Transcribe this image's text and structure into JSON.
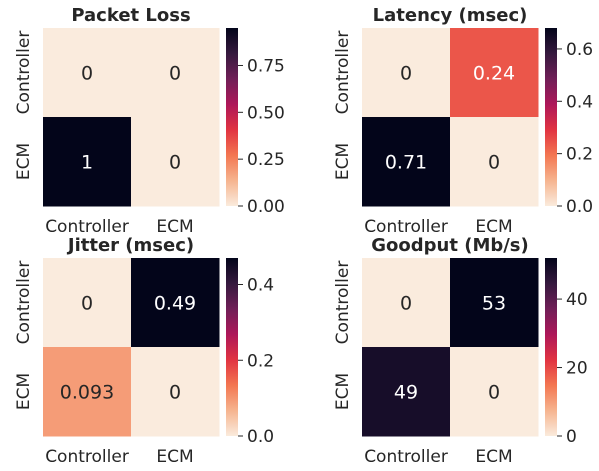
{
  "chart_data": [
    {
      "type": "heatmap",
      "title": "Packet Loss",
      "rows": [
        "Controller",
        "ECM"
      ],
      "cols": [
        "Controller",
        "ECM"
      ],
      "values": [
        [
          0,
          0
        ],
        [
          1,
          0
        ]
      ],
      "labels": [
        [
          "0",
          "0"
        ],
        [
          "1",
          "0"
        ]
      ],
      "colorbar": {
        "vmin": 0,
        "vmax": 0.95,
        "ticks": [
          0.0,
          0.25,
          0.5,
          0.75
        ],
        "tick_labels": [
          "0.00",
          "0.25",
          "0.50",
          "0.75"
        ]
      }
    },
    {
      "type": "heatmap",
      "title": "Latency (msec)",
      "rows": [
        "Controller",
        "ECM"
      ],
      "cols": [
        "Controller",
        "ECM"
      ],
      "values": [
        [
          0,
          0.24
        ],
        [
          0.71,
          0
        ]
      ],
      "labels": [
        [
          "0",
          "0.24"
        ],
        [
          "0.71",
          "0"
        ]
      ],
      "colorbar": {
        "vmin": 0,
        "vmax": 0.68,
        "ticks": [
          0.0,
          0.2,
          0.4,
          0.6
        ],
        "tick_labels": [
          "0.0",
          "0.2",
          "0.4",
          "0.6"
        ]
      }
    },
    {
      "type": "heatmap",
      "title": "Jitter (msec)",
      "rows": [
        "Controller",
        "ECM"
      ],
      "cols": [
        "Controller",
        "ECM"
      ],
      "values": [
        [
          0,
          0.49
        ],
        [
          0.093,
          0
        ]
      ],
      "labels": [
        [
          "0",
          "0.49"
        ],
        [
          "0.093",
          "0"
        ]
      ],
      "colorbar": {
        "vmin": 0,
        "vmax": 0.47,
        "ticks": [
          0.0,
          0.2,
          0.4
        ],
        "tick_labels": [
          "0.0",
          "0.2",
          "0.4"
        ]
      }
    },
    {
      "type": "heatmap",
      "title": "Goodput (Mb/s)",
      "rows": [
        "Controller",
        "ECM"
      ],
      "cols": [
        "Controller",
        "ECM"
      ],
      "values": [
        [
          0,
          53
        ],
        [
          49,
          0
        ]
      ],
      "labels": [
        [
          "0",
          "53"
        ],
        [
          "49",
          "0"
        ]
      ],
      "colorbar": {
        "vmin": 0,
        "vmax": 52,
        "ticks": [
          0,
          20,
          40
        ],
        "tick_labels": [
          "0",
          "20",
          "40"
        ]
      }
    }
  ],
  "colormap": "rocket_r",
  "colormap_stops": [
    "#faebdd",
    "#f6b48f",
    "#f37651",
    "#e13342",
    "#ad1759",
    "#701f57",
    "#35193e",
    "#03051a"
  ]
}
